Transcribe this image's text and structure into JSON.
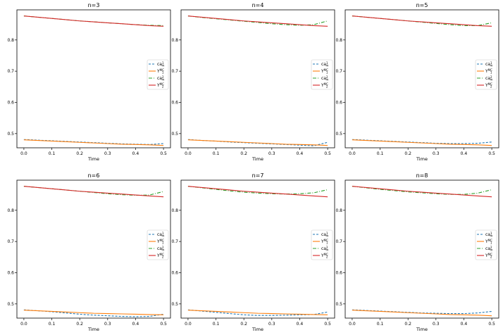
{
  "chart_data": {
    "type": "line",
    "x": [
      0.0,
      0.05,
      0.1,
      0.15,
      0.2,
      0.25,
      0.3,
      0.35,
      0.4,
      0.45,
      0.5
    ],
    "xticks": [
      0.0,
      0.1,
      0.2,
      0.3,
      0.4,
      0.5
    ],
    "xtick_labels": [
      "0.0",
      "0.1",
      "0.2",
      "0.3",
      "0.4",
      "0.5"
    ],
    "yticks": [
      0.5,
      0.6,
      0.7,
      0.8
    ],
    "ytick_labels": [
      "0.5",
      "0.6",
      "0.7",
      "0.8"
    ],
    "xlim": [
      -0.025,
      0.525
    ],
    "ylim": [
      0.4545,
      0.8965
    ],
    "xlabel": "Time",
    "legend_position": "center-right",
    "series_style": [
      {
        "name": "ca_m^1",
        "color": "#1f77b4",
        "dash": "3,2"
      },
      {
        "name": "Y_1^MC",
        "color": "#ff7f0e",
        "dash": ""
      },
      {
        "name": "ca_m^2",
        "color": "#2ca02c",
        "dash": "5,2,1,2"
      },
      {
        "name": "Y_2^MC",
        "color": "#d62728",
        "dash": ""
      }
    ],
    "legend_labels": [
      {
        "main": "ca",
        "sub": "m",
        "sup": "1"
      },
      {
        "main": "Y",
        "sub": "1",
        "sup": "MC"
      },
      {
        "main": "ca",
        "sub": "m",
        "sup": "2"
      },
      {
        "main": "Y",
        "sub": "2",
        "sup": "MC"
      }
    ],
    "panels": [
      {
        "title": "n=3",
        "series": [
          {
            "name": "ca_m^1",
            "values": [
              0.481,
              0.479,
              0.477,
              0.475,
              0.473,
              0.471,
              0.469,
              0.467,
              0.466,
              0.465,
              0.468
            ]
          },
          {
            "name": "Y_1^MC",
            "values": [
              0.48,
              0.478,
              0.476,
              0.474,
              0.472,
              0.47,
              0.468,
              0.466,
              0.465,
              0.464,
              0.462
            ]
          },
          {
            "name": "ca_m^2",
            "values": [
              0.877,
              0.873,
              0.869,
              0.865,
              0.861,
              0.858,
              0.855,
              0.852,
              0.849,
              0.847,
              0.846
            ]
          },
          {
            "name": "Y_2^MC",
            "values": [
              0.877,
              0.873,
              0.869,
              0.865,
              0.861,
              0.858,
              0.855,
              0.852,
              0.849,
              0.846,
              0.844
            ]
          }
        ]
      },
      {
        "title": "n=4",
        "series": [
          {
            "name": "ca_m^1",
            "values": [
              0.481,
              0.478,
              0.476,
              0.473,
              0.471,
              0.469,
              0.467,
              0.465,
              0.463,
              0.461,
              0.472
            ]
          },
          {
            "name": "Y_1^MC",
            "values": [
              0.48,
              0.478,
              0.476,
              0.474,
              0.472,
              0.47,
              0.468,
              0.466,
              0.465,
              0.464,
              0.462
            ]
          },
          {
            "name": "ca_m^2",
            "values": [
              0.877,
              0.872,
              0.868,
              0.864,
              0.86,
              0.856,
              0.852,
              0.849,
              0.847,
              0.849,
              0.861
            ]
          },
          {
            "name": "Y_2^MC",
            "values": [
              0.877,
              0.873,
              0.869,
              0.865,
              0.861,
              0.858,
              0.855,
              0.852,
              0.849,
              0.846,
              0.844
            ]
          }
        ]
      },
      {
        "title": "n=5",
        "series": [
          {
            "name": "ca_m^1",
            "values": [
              0.481,
              0.479,
              0.477,
              0.475,
              0.473,
              0.471,
              0.469,
              0.468,
              0.468,
              0.469,
              0.473
            ]
          },
          {
            "name": "Y_1^MC",
            "values": [
              0.48,
              0.478,
              0.476,
              0.474,
              0.472,
              0.47,
              0.468,
              0.466,
              0.465,
              0.464,
              0.462
            ]
          },
          {
            "name": "ca_m^2",
            "values": [
              0.877,
              0.873,
              0.869,
              0.865,
              0.861,
              0.857,
              0.853,
              0.849,
              0.846,
              0.846,
              0.855
            ]
          },
          {
            "name": "Y_2^MC",
            "values": [
              0.877,
              0.873,
              0.869,
              0.865,
              0.861,
              0.858,
              0.855,
              0.852,
              0.849,
              0.846,
              0.844
            ]
          }
        ]
      },
      {
        "title": "n=6",
        "series": [
          {
            "name": "ca_m^1",
            "values": [
              0.481,
              0.478,
              0.475,
              0.471,
              0.467,
              0.464,
              0.462,
              0.46,
              0.459,
              0.46,
              0.467
            ]
          },
          {
            "name": "Y_1^MC",
            "values": [
              0.48,
              0.478,
              0.476,
              0.474,
              0.472,
              0.47,
              0.469,
              0.468,
              0.467,
              0.466,
              0.465
            ]
          },
          {
            "name": "ca_m^2",
            "values": [
              0.877,
              0.873,
              0.869,
              0.865,
              0.861,
              0.857,
              0.853,
              0.85,
              0.848,
              0.849,
              0.86
            ]
          },
          {
            "name": "Y_2^MC",
            "values": [
              0.877,
              0.873,
              0.869,
              0.865,
              0.861,
              0.858,
              0.855,
              0.852,
              0.849,
              0.846,
              0.843
            ]
          }
        ]
      },
      {
        "title": "n=7",
        "series": [
          {
            "name": "ca_m^1",
            "values": [
              0.481,
              0.477,
              0.473,
              0.469,
              0.465,
              0.463,
              0.463,
              0.464,
              0.465,
              0.466,
              0.474
            ]
          },
          {
            "name": "Y_1^MC",
            "values": [
              0.48,
              0.478,
              0.476,
              0.474,
              0.472,
              0.47,
              0.469,
              0.468,
              0.467,
              0.466,
              0.465
            ]
          },
          {
            "name": "ca_m^2",
            "values": [
              0.877,
              0.872,
              0.867,
              0.862,
              0.858,
              0.855,
              0.853,
              0.852,
              0.853,
              0.856,
              0.866
            ]
          },
          {
            "name": "Y_2^MC",
            "values": [
              0.877,
              0.873,
              0.869,
              0.865,
              0.861,
              0.858,
              0.855,
              0.852,
              0.849,
              0.846,
              0.843
            ]
          }
        ]
      },
      {
        "title": "n=8",
        "series": [
          {
            "name": "ca_m^1",
            "values": [
              0.481,
              0.479,
              0.477,
              0.475,
              0.473,
              0.471,
              0.47,
              0.469,
              0.469,
              0.471,
              0.476
            ]
          },
          {
            "name": "Y_1^MC",
            "values": [
              0.48,
              0.478,
              0.476,
              0.474,
              0.472,
              0.47,
              0.468,
              0.466,
              0.465,
              0.464,
              0.462
            ]
          },
          {
            "name": "ca_m^2",
            "values": [
              0.877,
              0.872,
              0.867,
              0.863,
              0.859,
              0.856,
              0.853,
              0.851,
              0.851,
              0.855,
              0.866
            ]
          },
          {
            "name": "Y_2^MC",
            "values": [
              0.877,
              0.873,
              0.869,
              0.865,
              0.861,
              0.858,
              0.855,
              0.852,
              0.849,
              0.846,
              0.843
            ]
          }
        ]
      }
    ]
  }
}
